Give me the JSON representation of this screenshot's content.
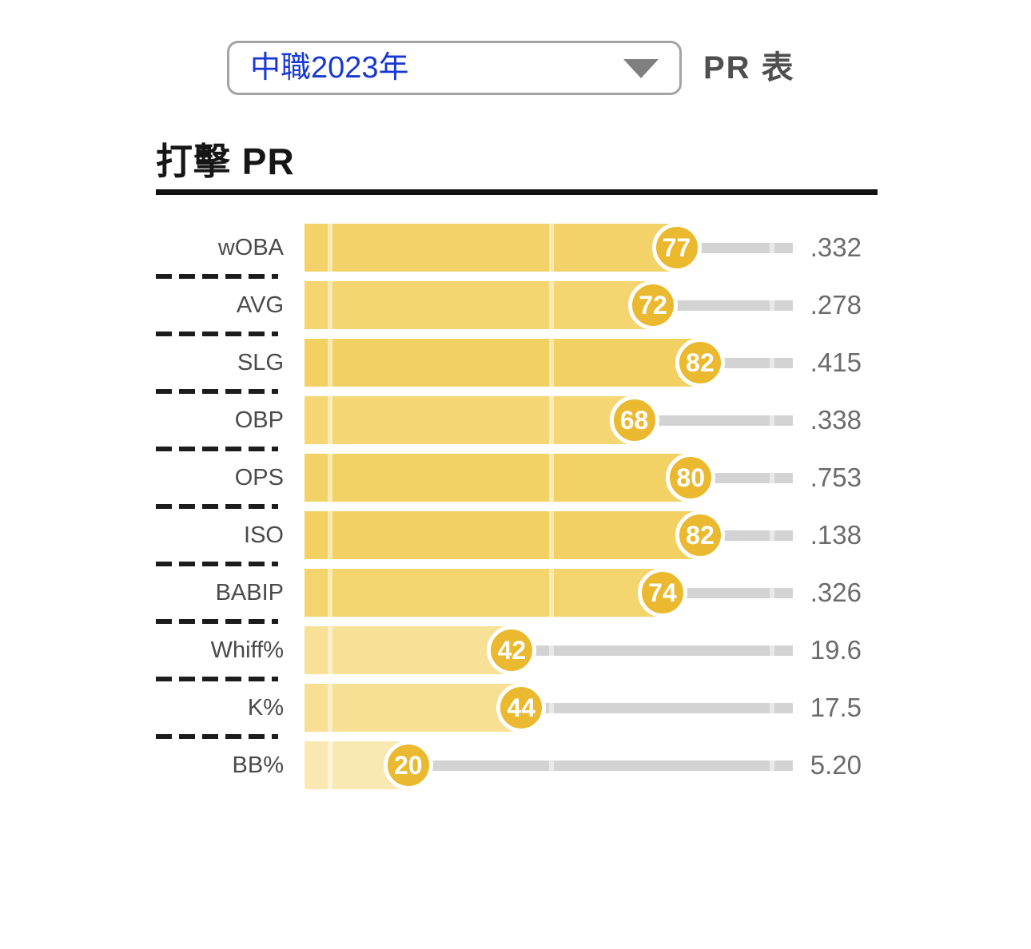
{
  "header": {
    "season_dropdown": {
      "selected": "中職2023年"
    },
    "view_label": "PR 表"
  },
  "section": {
    "title": "打擊 PR"
  },
  "chart_data": {
    "type": "bar",
    "orientation": "horizontal",
    "title": "打擊 PR",
    "xlabel": "PR",
    "xlim": [
      0,
      100
    ],
    "gridlines_pr": [
      3,
      50,
      97
    ],
    "legend": "none",
    "categories": [
      "wOBA",
      "AVG",
      "SLG",
      "OBP",
      "OPS",
      "ISO",
      "BABIP",
      "Whiff%",
      "K%",
      "BB%"
    ],
    "series": [
      {
        "name": "PR",
        "values": [
          77,
          72,
          82,
          68,
          80,
          82,
          74,
          42,
          44,
          20
        ]
      }
    ],
    "value_labels": [
      ".332",
      ".278",
      ".415",
      ".338",
      ".753",
      ".138",
      ".326",
      "19.6",
      "17.5",
      "5.20"
    ],
    "rows": [
      {
        "stat": "wOBA",
        "pr": 77,
        "value": ".332",
        "bar_color": "#F3D369"
      },
      {
        "stat": "AVG",
        "pr": 72,
        "value": ".278",
        "bar_color": "#F4D56F"
      },
      {
        "stat": "SLG",
        "pr": 82,
        "value": ".415",
        "bar_color": "#F2D162"
      },
      {
        "stat": "OBP",
        "pr": 68,
        "value": ".338",
        "bar_color": "#F4D774"
      },
      {
        "stat": "OPS",
        "pr": 80,
        "value": ".753",
        "bar_color": "#F3D265"
      },
      {
        "stat": "ISO",
        "pr": 82,
        "value": ".138",
        "bar_color": "#F2D162"
      },
      {
        "stat": "BABIP",
        "pr": 74,
        "value": ".326",
        "bar_color": "#F3D46D"
      },
      {
        "stat": "Whiff%",
        "pr": 42,
        "value": "19.6",
        "bar_color": "#F8E096"
      },
      {
        "stat": "K%",
        "pr": 44,
        "value": "17.5",
        "bar_color": "#F7DF93"
      },
      {
        "stat": "BB%",
        "pr": 20,
        "value": "5.20",
        "bar_color": "#FAE8B2"
      }
    ]
  },
  "colors": {
    "badge_fill": "#EAB92F",
    "badge_text": "#FFFFFF",
    "track": "#D3D3D3",
    "dropdown_text": "#1838D2",
    "dropdown_border": "#A3A3A3",
    "arrow": "#7F7F7F",
    "title_text": "#161616",
    "label_text": "#4A4A4A",
    "value_text": "#6B6B6B",
    "separator": "#1C1C1C"
  }
}
